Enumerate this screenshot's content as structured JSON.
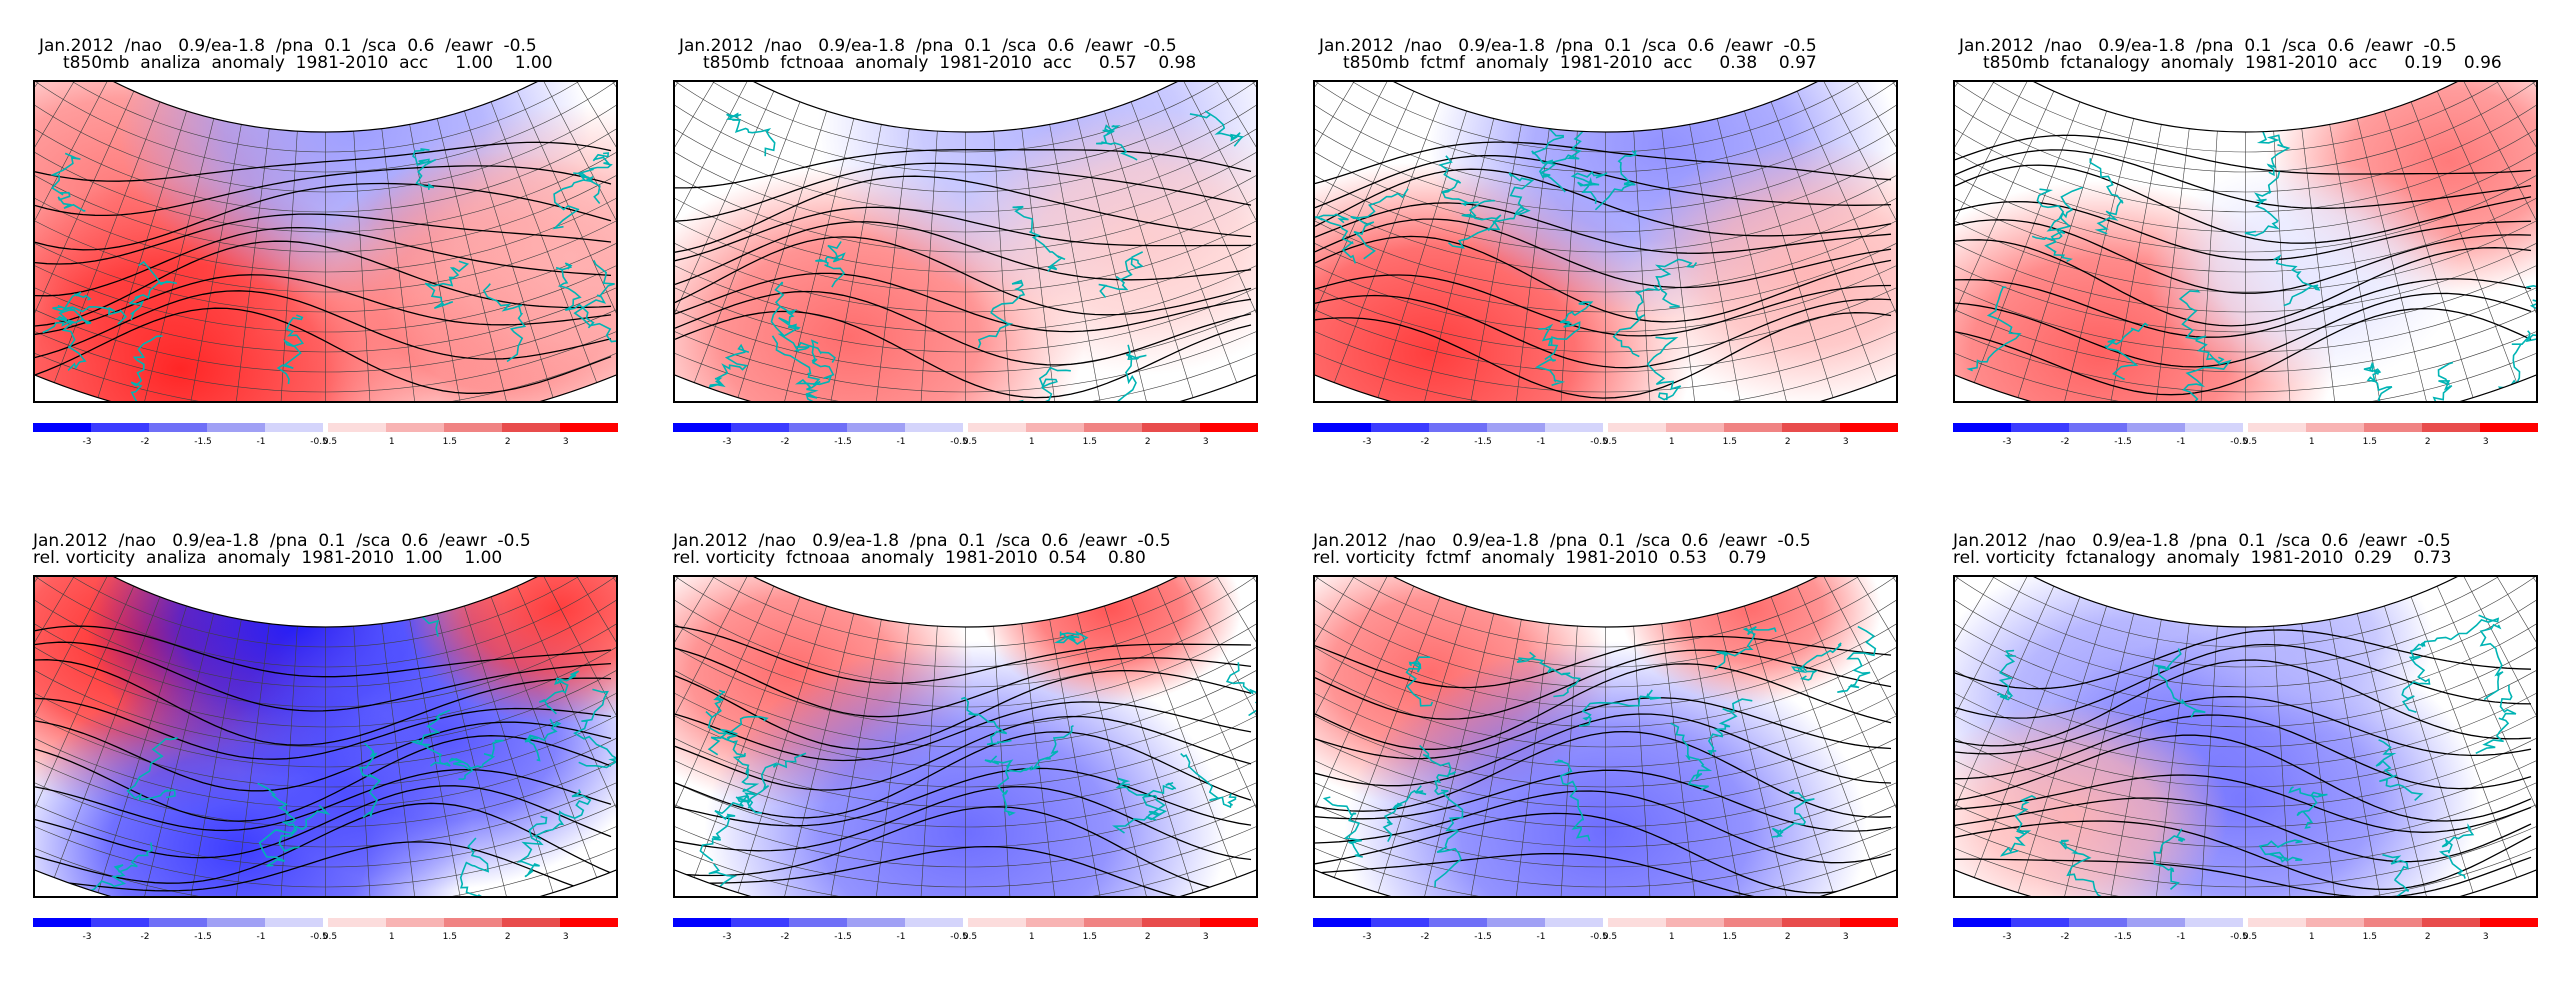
{
  "panels": [
    {
      "line1": "Jan.2012  /nao   0.9/ea-1.8  /pna  0.1  /sca  0.6  /eawr  -0.5",
      "line2": "t850mb  analiza  anomaly  1981-2010  acc     1.00    1.00",
      "field": "t850",
      "source": "analiza",
      "acc1": "1.00",
      "acc2": "1.00",
      "pattern": [
        [
          0.15,
          0.35,
          0.9,
          0.55
        ],
        [
          0.25,
          0.9,
          1.0,
          0.9
        ],
        [
          0.55,
          0.15,
          0.9,
          -0.4
        ],
        [
          0.8,
          0.7,
          0.8,
          0.6
        ],
        [
          0.92,
          0.55,
          0.8,
          0.3
        ]
      ]
    },
    {
      "line1": "Jan.2012  /nao   0.9/ea-1.8  /pna  0.1  /sca  0.6  /eawr  -0.5",
      "line2": "t850mb  fctnoaa  anomaly  1981-2010  acc     0.57    0.98",
      "field": "t850",
      "source": "fctnoaa",
      "acc1": "0.57",
      "acc2": "0.98",
      "pattern": [
        [
          0.3,
          0.8,
          0.9,
          0.6
        ],
        [
          0.65,
          0.15,
          0.9,
          -0.3
        ],
        [
          0.8,
          0.5,
          0.7,
          0.2
        ]
      ]
    },
    {
      "line1": "Jan.2012  /nao   0.9/ea-1.8  /pna  0.1  /sca  0.6  /eawr  -0.5",
      "line2": "t850mb  fctmf  anomaly  1981-2010  acc     0.38    0.97",
      "field": "t850",
      "source": "fctmf",
      "acc1": "0.38",
      "acc2": "0.97",
      "pattern": [
        [
          0.2,
          0.85,
          1.0,
          0.8
        ],
        [
          0.6,
          0.2,
          0.9,
          -0.45
        ],
        [
          0.85,
          0.6,
          0.7,
          0.3
        ]
      ]
    },
    {
      "line1": "Jan.2012  /nao   0.9/ea-1.8  /pna  0.1  /sca  0.6  /eawr  -0.5",
      "line2": "t850mb  fctanalogy  anomaly  1981-2010  acc     0.19    0.96",
      "field": "t850",
      "source": "fctanalogy",
      "acc1": "0.19",
      "acc2": "0.96",
      "pattern": [
        [
          0.25,
          0.85,
          0.9,
          0.65
        ],
        [
          0.85,
          0.25,
          0.7,
          0.55
        ],
        [
          0.6,
          0.6,
          0.6,
          -0.1
        ]
      ]
    },
    {
      "line1": "Jan.2012  /nao   0.9/ea-1.8  /pna  0.1  /sca  0.6  /eawr  -0.5",
      "line2": "rel. vorticity  analiza  anomaly  1981-2010  1.00    1.00",
      "field": "vort",
      "source": "analiza",
      "acc1": "1.00",
      "acc2": "1.00",
      "pattern": [
        [
          0.2,
          0.2,
          0.9,
          0.9
        ],
        [
          0.45,
          0.15,
          0.8,
          -0.9
        ],
        [
          0.7,
          0.5,
          0.8,
          -0.7
        ],
        [
          0.35,
          0.85,
          0.9,
          -0.8
        ],
        [
          0.9,
          0.1,
          0.6,
          0.8
        ]
      ]
    },
    {
      "line1": "Jan.2012  /nao   0.9/ea-1.8  /pna  0.1  /sca  0.6  /eawr  -0.5",
      "line2": "rel. vorticity  fctnoaa  anomaly  1981-2010  0.54    0.80",
      "field": "vort",
      "source": "fctnoaa",
      "acc1": "0.54",
      "acc2": "0.80",
      "pattern": [
        [
          0.2,
          0.3,
          0.7,
          0.6
        ],
        [
          0.5,
          0.8,
          1.0,
          -0.6
        ],
        [
          0.75,
          0.1,
          0.5,
          0.7
        ]
      ]
    },
    {
      "line1": "Jan.2012  /nao   0.9/ea-1.8  /pna  0.1  /sca  0.6  /eawr  -0.5",
      "line2": "rel. vorticity  fctmf  anomaly  1981-2010  0.53    0.79",
      "field": "vort",
      "source": "fctmf",
      "acc1": "0.53",
      "acc2": "0.79",
      "pattern": [
        [
          0.2,
          0.3,
          0.7,
          0.6
        ],
        [
          0.5,
          0.8,
          1.0,
          -0.6
        ],
        [
          0.75,
          0.1,
          0.5,
          0.6
        ]
      ]
    },
    {
      "line1": "Jan.2012  /nao   0.9/ea-1.8  /pna  0.1  /sca  0.6  /eawr  -0.5",
      "line2": "rel. vorticity  fctanalogy  anomaly  1981-2010  0.29    0.73",
      "field": "vort",
      "source": "fctanalogy",
      "acc1": "0.29",
      "acc2": "0.73",
      "pattern": [
        [
          0.3,
          0.4,
          0.8,
          -0.4
        ],
        [
          0.5,
          0.7,
          0.9,
          -0.55
        ],
        [
          0.2,
          0.75,
          0.6,
          0.3
        ],
        [
          0.6,
          0.2,
          0.5,
          -0.3
        ]
      ]
    }
  ],
  "colorbar": {
    "negative_labels": [
      "-3",
      "-2",
      "-1.5",
      "-1",
      "-0.5"
    ],
    "positive_labels": [
      "0.5",
      "1",
      "1.5",
      "2",
      "3"
    ],
    "negative_colors": [
      "#0000ff",
      "#3b3bff",
      "#6f6ff7",
      "#a0a0f5",
      "#d4d4fb"
    ],
    "positive_colors": [
      "#fcdcdc",
      "#f8b3b3",
      "#f08383",
      "#e84c4c",
      "#ff0000"
    ]
  },
  "colors": {
    "coast": "#00b4b4",
    "contour": "#000000",
    "grid": "#404040"
  }
}
